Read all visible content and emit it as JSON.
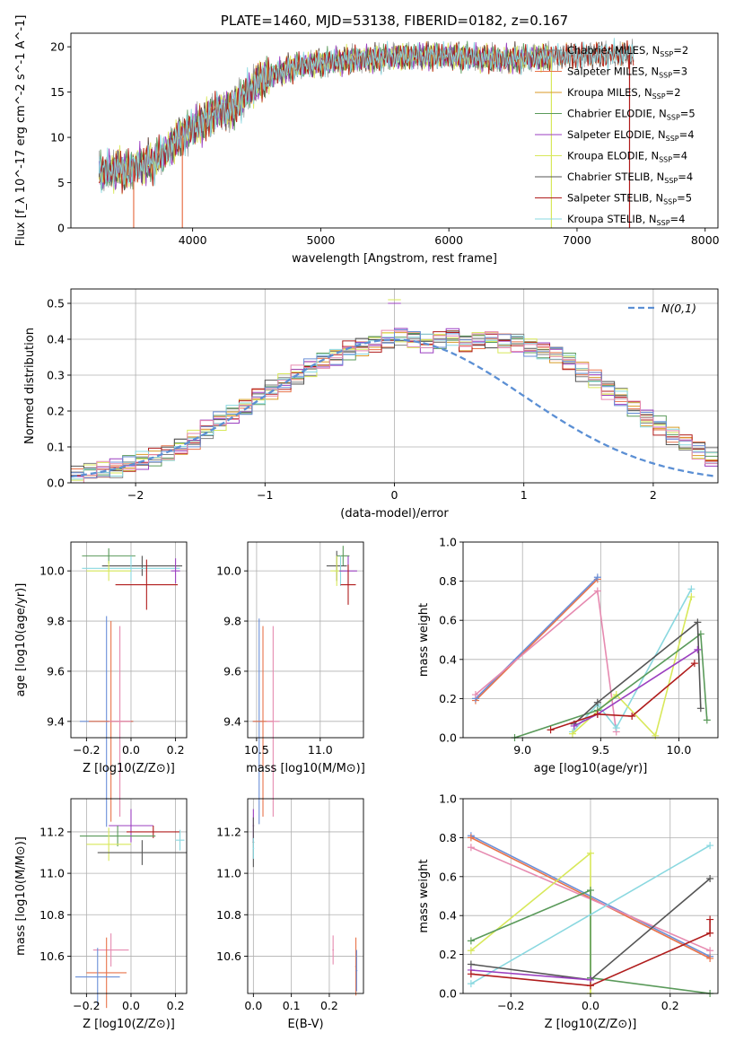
{
  "colors": {
    "Chabrier MILES": "#808080",
    "Salpeter MILES": "#e8734a",
    "Kroupa MILES": "#d89a25",
    "Chabrier ELODIE": "#5a9a5a",
    "Salpeter ELODIE": "#9b3fc0",
    "Kroupa ELODIE": "#d8e85a",
    "Chabrier STELIB": "#555555",
    "Salpeter STELIB": "#b01c1c",
    "Kroupa STELIB": "#8ad8e0",
    "extra_blue": "#6a8fd8",
    "extra_pink": "#e68ab0",
    "gaussian": "#5b8fd4"
  },
  "chart_data": [
    {
      "id": "spectrum",
      "type": "line",
      "title": "PLATE=1460, MJD=53138, FIBERID=0182, z=0.167",
      "xlabel": "wavelength [Angstrom, rest frame]",
      "ylabel": "Flux [f_λ 10^-17 erg cm^-2 s^-1 A^-1]",
      "xlim": [
        3050,
        8100
      ],
      "ylim": [
        0,
        21.5
      ],
      "xticks": [
        "4000",
        "5000",
        "6000",
        "7000",
        "8000"
      ],
      "yticks": [
        "0",
        "5",
        "10",
        "15",
        "20"
      ],
      "grid": false,
      "legend_position": "right",
      "legend": [
        {
          "model": "Chabrier MILES",
          "nssp": "2"
        },
        {
          "model": "Salpeter MILES",
          "nssp": "3"
        },
        {
          "model": "Kroupa MILES",
          "nssp": "2"
        },
        {
          "model": "Chabrier ELODIE",
          "nssp": "5"
        },
        {
          "model": "Salpeter ELODIE",
          "nssp": "4"
        },
        {
          "model": "Kroupa ELODIE",
          "nssp": "4"
        },
        {
          "model": "Chabrier STELIB",
          "nssp": "4"
        },
        {
          "model": "Salpeter STELIB",
          "nssp": "5"
        },
        {
          "model": "Kroupa STELIB",
          "nssp": "4"
        }
      ],
      "continuum": {
        "wavelength": [
          3270,
          3400,
          3500,
          3600,
          3700,
          3800,
          3900,
          4000,
          4100,
          4200,
          4300,
          4400,
          4500,
          4600,
          4800,
          5000,
          5200,
          5400,
          5600,
          5800,
          6000,
          6200,
          6400,
          6600,
          6800,
          7000,
          7200,
          7440
        ],
        "flux": [
          6.0,
          6.5,
          6.3,
          7.0,
          7.3,
          8.5,
          10.0,
          11.0,
          11.8,
          13.0,
          13.0,
          14.5,
          16.0,
          16.8,
          17.8,
          18.2,
          18.5,
          18.7,
          18.9,
          19.0,
          19.0,
          18.8,
          18.6,
          18.7,
          18.9,
          19.0,
          19.1,
          19.2
        ]
      }
    },
    {
      "id": "residuals",
      "type": "histogram",
      "xlabel": "(data-model)/error",
      "ylabel": "Normed distribution",
      "xlim": [
        -2.5,
        2.5
      ],
      "ylim": [
        0,
        0.54
      ],
      "xticks": [
        "−2",
        "−1",
        "0",
        "1",
        "2"
      ],
      "yticks": [
        "0.0",
        "0.1",
        "0.2",
        "0.3",
        "0.4",
        "0.5"
      ],
      "grid": true,
      "legend_position": "top-right",
      "legend_label": "N(0,1)",
      "bin_width": 0.1,
      "bin_start": -2.5,
      "density": [
        0.02,
        0.03,
        0.035,
        0.04,
        0.05,
        0.06,
        0.07,
        0.08,
        0.1,
        0.12,
        0.15,
        0.17,
        0.19,
        0.21,
        0.24,
        0.26,
        0.28,
        0.3,
        0.32,
        0.34,
        0.35,
        0.37,
        0.38,
        0.39,
        0.4,
        0.41,
        0.4,
        0.39,
        0.4,
        0.41,
        0.39,
        0.4,
        0.4,
        0.39,
        0.39,
        0.38,
        0.37,
        0.36,
        0.34,
        0.31,
        0.29,
        0.26,
        0.24,
        0.21,
        0.18,
        0.16,
        0.13,
        0.11,
        0.09,
        0.07,
        0.06
      ]
    },
    {
      "id": "age-vs-Z",
      "type": "errorbar",
      "xlabel": "Z [log10(Z/Z⊙)]",
      "ylabel": "age [log10(age/yr)]",
      "xlim": [
        -0.27,
        0.25
      ],
      "ylim": [
        9.335,
        10.115
      ],
      "xticks": [
        "−0.2",
        "0.0",
        "0.2"
      ],
      "yticks": [
        "9.4",
        "9.6",
        "9.8",
        "10.0"
      ],
      "grid": true,
      "points": [
        {
          "model": "Chabrier ELODIE",
          "x": -0.1,
          "y": 10.06,
          "xerr": 0.12,
          "yerr": 0.03
        },
        {
          "model": "Chabrier STELIB",
          "x": 0.05,
          "y": 10.02,
          "xerr": 0.18,
          "yerr": 0.04
        },
        {
          "model": "Kroupa STELIB",
          "x": 0.0,
          "y": 10.01,
          "xerr": 0.22,
          "yerr": 0.05
        },
        {
          "model": "Kroupa ELODIE",
          "x": -0.1,
          "y": 10.0,
          "xerr": 0.1,
          "yerr": 0.04
        },
        {
          "model": "Salpeter STELIB",
          "x": 0.07,
          "y": 9.945,
          "xerr": 0.14,
          "yerr": 0.1
        },
        {
          "model": "Salpeter ELODIE",
          "x": 0.2,
          "y": 10.0,
          "xerr": 0.02,
          "yerr": 0.05
        },
        {
          "model": "extra_blue",
          "x": -0.11,
          "y": 9.4,
          "xerr": 0.12,
          "yerr": 0.42
        },
        {
          "model": "Salpeter MILES",
          "x": -0.09,
          "y": 9.4,
          "xerr": 0.1,
          "yerr": 0.4
        },
        {
          "model": "extra_pink",
          "x": -0.05,
          "y": 9.4,
          "xerr": 0.05,
          "yerr": 0.38
        }
      ]
    },
    {
      "id": "age-vs-mass",
      "type": "errorbar",
      "xlabel": "mass [log10(M/M⊙)]",
      "ylabel": "",
      "xlim": [
        10.43,
        11.34
      ],
      "ylim": [
        9.335,
        10.115
      ],
      "xticks": [
        "10.5",
        "11.0"
      ],
      "yticks": [
        "9.4",
        "9.6",
        "9.8",
        "10.0"
      ],
      "grid": true,
      "points": [
        {
          "model": "Chabrier ELODIE",
          "x": 11.18,
          "y": 10.06,
          "xerr": 0.05,
          "yerr": 0.04
        },
        {
          "model": "Chabrier STELIB",
          "x": 11.13,
          "y": 10.02,
          "xerr": 0.08,
          "yerr": 0.06
        },
        {
          "model": "Kroupa STELIB",
          "x": 11.16,
          "y": 10.0,
          "xerr": 0.05,
          "yerr": 0.06
        },
        {
          "model": "Kroupa ELODIE",
          "x": 11.13,
          "y": 10.0,
          "xerr": 0.05,
          "yerr": 0.06
        },
        {
          "model": "Salpeter ELODIE",
          "x": 11.22,
          "y": 10.0,
          "xerr": 0.07,
          "yerr": 0.06
        },
        {
          "model": "Salpeter STELIB",
          "x": 11.22,
          "y": 9.945,
          "xerr": 0.06,
          "yerr": 0.08
        },
        {
          "model": "extra_blue",
          "x": 10.52,
          "y": 9.4,
          "xerr": 0.05,
          "yerr": 0.41
        },
        {
          "model": "Salpeter MILES",
          "x": 10.55,
          "y": 9.4,
          "xerr": 0.08,
          "yerr": 0.38
        },
        {
          "model": "extra_pink",
          "x": 10.63,
          "y": 9.4,
          "xerr": 0.05,
          "yerr": 0.38
        }
      ]
    },
    {
      "id": "weight-vs-age",
      "type": "line",
      "xlabel": "age [log10(age/yr)]",
      "ylabel": "mass weight",
      "xlim": [
        8.62,
        10.25
      ],
      "ylim": [
        0,
        1.0
      ],
      "xticks": [
        "9.0",
        "9.5",
        "10.0"
      ],
      "yticks": [
        "0.0",
        "0.2",
        "0.4",
        "0.6",
        "0.8",
        "1.0"
      ],
      "grid": true,
      "series": [
        {
          "model": "Salpeter MILES",
          "x": [
            8.7,
            9.48
          ],
          "y": [
            0.19,
            0.81
          ]
        },
        {
          "model": "extra_blue",
          "x": [
            8.7,
            9.48
          ],
          "y": [
            0.2,
            0.82
          ]
        },
        {
          "model": "extra_pink",
          "x": [
            8.7,
            9.48,
            9.6
          ],
          "y": [
            0.22,
            0.75,
            0.03
          ]
        },
        {
          "model": "Kroupa STELIB",
          "x": [
            9.32,
            9.48,
            9.6,
            10.08
          ],
          "y": [
            0.03,
            0.17,
            0.05,
            0.76
          ]
        },
        {
          "model": "Kroupa ELODIE",
          "x": [
            9.32,
            9.6,
            9.85,
            10.08
          ],
          "y": [
            0.02,
            0.22,
            0.01,
            0.72
          ]
        },
        {
          "model": "Chabrier ELODIE",
          "x": [
            8.95,
            9.48,
            10.14,
            10.18
          ],
          "y": [
            0.0,
            0.14,
            0.53,
            0.09
          ]
        },
        {
          "model": "Chabrier STELIB",
          "x": [
            9.33,
            9.48,
            10.12,
            10.14
          ],
          "y": [
            0.07,
            0.18,
            0.59,
            0.15
          ]
        },
        {
          "model": "Salpeter ELODIE",
          "x": [
            9.33,
            9.48,
            10.12
          ],
          "y": [
            0.06,
            0.12,
            0.45
          ]
        },
        {
          "model": "Salpeter STELIB",
          "x": [
            9.18,
            9.48,
            9.7,
            10.1
          ],
          "y": [
            0.04,
            0.12,
            0.11,
            0.38
          ]
        }
      ]
    },
    {
      "id": "mass-vs-Z",
      "type": "errorbar",
      "xlabel": "Z [log10(Z/Z⊙)]",
      "ylabel": "mass [log10(M/M⊙)]",
      "xlim": [
        -0.27,
        0.25
      ],
      "ylim": [
        10.42,
        11.36
      ],
      "xticks": [
        "−0.2",
        "0.0",
        "0.2"
      ],
      "yticks": [
        "10.6",
        "10.8",
        "11.0",
        "11.2"
      ],
      "grid": true,
      "points": [
        {
          "model": "Salpeter ELODIE",
          "x": 0.0,
          "y": 11.23,
          "xerr": 0.1,
          "yerr": 0.08
        },
        {
          "model": "Salpeter STELIB",
          "x": 0.1,
          "y": 11.2,
          "xerr": 0.12,
          "yerr": 0.03
        },
        {
          "model": "Chabrier ELODIE",
          "x": -0.06,
          "y": 11.18,
          "xerr": 0.17,
          "yerr": 0.05
        },
        {
          "model": "Kroupa STELIB",
          "x": 0.22,
          "y": 11.16,
          "xerr": 0.02,
          "yerr": 0.05
        },
        {
          "model": "Kroupa ELODIE",
          "x": -0.1,
          "y": 11.14,
          "xerr": 0.1,
          "yerr": 0.08
        },
        {
          "model": "Chabrier STELIB",
          "x": 0.05,
          "y": 11.1,
          "xerr": 0.2,
          "yerr": 0.06
        },
        {
          "model": "extra_pink",
          "x": -0.09,
          "y": 10.63,
          "xerr": 0.08,
          "yerr": 0.08
        },
        {
          "model": "Salpeter MILES",
          "x": -0.11,
          "y": 10.52,
          "xerr": 0.09,
          "yerr": 0.17
        },
        {
          "model": "extra_blue",
          "x": -0.15,
          "y": 10.5,
          "xerr": 0.1,
          "yerr": 0.14
        }
      ]
    },
    {
      "id": "mass-vs-EBV",
      "type": "errorbar",
      "xlabel": "E(B-V)",
      "ylabel": "",
      "xlim": [
        -0.015,
        0.29
      ],
      "ylim": [
        10.42,
        11.36
      ],
      "xticks": [
        "0.0",
        "0.1",
        "0.2"
      ],
      "yticks": [
        "10.6",
        "10.8",
        "11.0",
        "11.2"
      ],
      "grid": true,
      "points": [
        {
          "model": "Salpeter ELODIE",
          "x": 0.0,
          "y": 11.23,
          "xerr": 0.002,
          "yerr": 0.08
        },
        {
          "model": "Chabrier STELIB",
          "x": 0.0,
          "y": 11.15,
          "xerr": 0.002,
          "yerr": 0.12
        },
        {
          "model": "Kroupa STELIB",
          "x": 0.0,
          "y": 11.12,
          "xerr": 0.002,
          "yerr": 0.05
        },
        {
          "model": "extra_pink",
          "x": 0.21,
          "y": 10.63,
          "xerr": 0.002,
          "yerr": 0.07
        },
        {
          "model": "Salpeter MILES",
          "x": 0.27,
          "y": 10.55,
          "xerr": 0.002,
          "yerr": 0.14
        },
        {
          "model": "extra_blue",
          "x": 0.272,
          "y": 10.53,
          "xerr": 0.002,
          "yerr": 0.1
        }
      ]
    },
    {
      "id": "weight-vs-Z",
      "type": "line",
      "xlabel": "Z [log10(Z/Z⊙)]",
      "ylabel": "mass weight",
      "xlim": [
        -0.32,
        0.32
      ],
      "ylim": [
        0,
        1.0
      ],
      "xticks": [
        "−0.2",
        "0.0",
        "0.2"
      ],
      "yticks": [
        "0.0",
        "0.2",
        "0.4",
        "0.6",
        "0.8",
        "1.0"
      ],
      "grid": true,
      "series": [
        {
          "model": "extra_blue",
          "x": [
            -0.3,
            0.3
          ],
          "y": [
            0.81,
            0.19
          ]
        },
        {
          "model": "Salpeter MILES",
          "x": [
            -0.3,
            0.3
          ],
          "y": [
            0.8,
            0.18
          ]
        },
        {
          "model": "extra_pink",
          "x": [
            -0.3,
            0.3
          ],
          "y": [
            0.75,
            0.22
          ]
        },
        {
          "model": "Kroupa ELODIE",
          "x": [
            -0.3,
            0.0,
            0.0
          ],
          "y": [
            0.22,
            0.72,
            0.0
          ]
        },
        {
          "model": "Chabrier ELODIE",
          "x": [
            -0.3,
            0.0,
            0.0,
            0.3
          ],
          "y": [
            0.27,
            0.53,
            0.08,
            0.0
          ]
        },
        {
          "model": "Kroupa STELIB",
          "x": [
            -0.3,
            0.3
          ],
          "y": [
            0.05,
            0.76
          ]
        },
        {
          "model": "Chabrier STELIB",
          "x": [
            -0.3,
            0.0,
            0.3
          ],
          "y": [
            0.15,
            0.07,
            0.59
          ]
        },
        {
          "model": "Salpeter ELODIE",
          "x": [
            -0.3,
            0.0
          ],
          "y": [
            0.12,
            0.07
          ]
        },
        {
          "model": "Salpeter STELIB",
          "x": [
            -0.3,
            0.0,
            0.3,
            0.3
          ],
          "y": [
            0.1,
            0.04,
            0.31,
            0.38
          ]
        }
      ]
    }
  ]
}
